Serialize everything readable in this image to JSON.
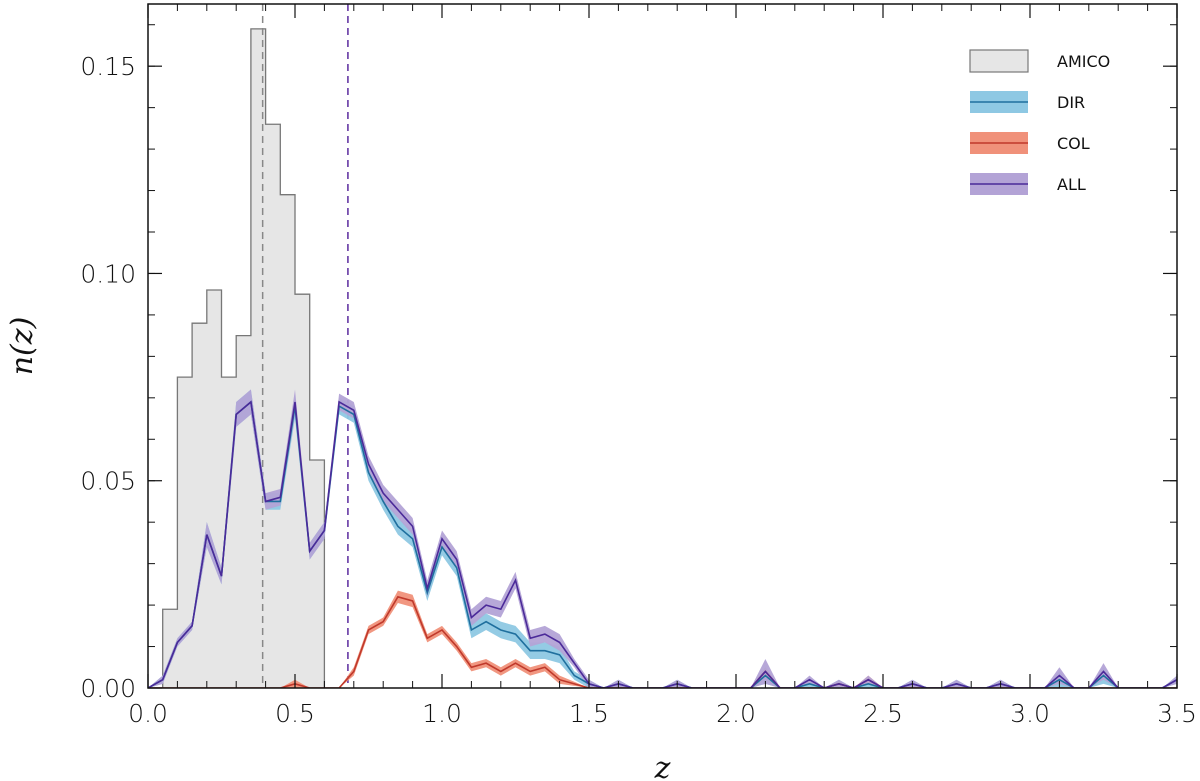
{
  "chart_data": {
    "type": "line",
    "xlabel": "z",
    "ylabel": "n(z)",
    "xlim": [
      0.0,
      3.5
    ],
    "ylim": [
      0.0,
      0.165
    ],
    "x_ticks": [
      0.0,
      0.5,
      1.0,
      1.5,
      2.0,
      2.5,
      3.0,
      3.5
    ],
    "x_tick_labels": [
      "0.0",
      "0.5",
      "1.0",
      "1.5",
      "2.0",
      "2.5",
      "3.0",
      "3.5"
    ],
    "y_ticks": [
      0.0,
      0.05,
      0.1,
      0.15
    ],
    "y_tick_labels": [
      "0.00",
      "0.05",
      "0.10",
      "0.15"
    ],
    "grid": false,
    "legend_position": "top-right",
    "vlines": [
      {
        "x": 0.39,
        "color": "#888888",
        "style": "dashed"
      },
      {
        "x": 0.68,
        "color": "#5b2a9e",
        "style": "dashed"
      }
    ],
    "histogram": {
      "name": "AMICO",
      "fill": "#e6e6e6",
      "edge": "#777777",
      "bin_edges": [
        0.05,
        0.1,
        0.15,
        0.2,
        0.25,
        0.3,
        0.35,
        0.4,
        0.45,
        0.5,
        0.55,
        0.6,
        0.65
      ],
      "values": [
        0.019,
        0.075,
        0.088,
        0.096,
        0.075,
        0.085,
        0.159,
        0.136,
        0.119,
        0.095,
        0.055,
        0.0
      ]
    },
    "series": [
      {
        "name": "DIR",
        "color": "#1f6f9e",
        "band": "#8ec8e3",
        "x": [
          0.0,
          0.05,
          0.1,
          0.15,
          0.2,
          0.25,
          0.3,
          0.35,
          0.4,
          0.45,
          0.5,
          0.55,
          0.6,
          0.65,
          0.7,
          0.75,
          0.8,
          0.85,
          0.9,
          0.95,
          1.0,
          1.05,
          1.1,
          1.15,
          1.2,
          1.25,
          1.3,
          1.35,
          1.4,
          1.45,
          1.5,
          1.55,
          1.6,
          1.65,
          1.7,
          1.75,
          1.8,
          1.85,
          1.9,
          1.95,
          2.0,
          2.05,
          2.1,
          2.15,
          2.2,
          2.25,
          2.3,
          2.35,
          2.4,
          2.45,
          2.5,
          2.55,
          2.6,
          2.65,
          2.7,
          2.75,
          2.8,
          2.85,
          2.9,
          2.95,
          3.0,
          3.05,
          3.1,
          3.15,
          3.2,
          3.25,
          3.3,
          3.35,
          3.4,
          3.45,
          3.5
        ],
        "y": [
          0.0,
          0.002,
          0.011,
          0.015,
          0.037,
          0.027,
          0.066,
          0.069,
          0.045,
          0.045,
          0.068,
          0.033,
          0.038,
          0.068,
          0.066,
          0.052,
          0.045,
          0.039,
          0.036,
          0.023,
          0.034,
          0.029,
          0.014,
          0.016,
          0.014,
          0.013,
          0.009,
          0.009,
          0.008,
          0.003,
          0.001,
          0.0,
          0.001,
          0.0,
          0.0,
          0.0,
          0.001,
          0.0,
          0.0,
          0.0,
          0.0,
          0.0,
          0.003,
          0.0,
          0.0,
          0.001,
          0.0,
          0.001,
          0.0,
          0.001,
          0.0,
          0.0,
          0.001,
          0.0,
          0.0,
          0.001,
          0.0,
          0.0,
          0.001,
          0.0,
          0.0,
          0.0,
          0.002,
          0.0,
          0.0,
          0.003,
          0.0,
          0.0,
          0.0,
          0.0,
          0.002
        ],
        "err": [
          0.0,
          0.001,
          0.001,
          0.001,
          0.003,
          0.002,
          0.003,
          0.003,
          0.002,
          0.002,
          0.003,
          0.002,
          0.002,
          0.002,
          0.002,
          0.002,
          0.002,
          0.002,
          0.002,
          0.002,
          0.002,
          0.002,
          0.002,
          0.002,
          0.002,
          0.002,
          0.002,
          0.002,
          0.002,
          0.001,
          0.001,
          0.0,
          0.001,
          0.0,
          0.0,
          0.0,
          0.001,
          0.0,
          0.0,
          0.0,
          0.0,
          0.0,
          0.002,
          0.0,
          0.0,
          0.001,
          0.0,
          0.001,
          0.0,
          0.001,
          0.0,
          0.0,
          0.001,
          0.0,
          0.0,
          0.001,
          0.0,
          0.0,
          0.001,
          0.0,
          0.0,
          0.0,
          0.002,
          0.0,
          0.0,
          0.002,
          0.0,
          0.0,
          0.0,
          0.0,
          0.001
        ]
      },
      {
        "name": "COL",
        "color": "#c0392b",
        "band": "#f0917a",
        "x": [
          0.0,
          0.05,
          0.1,
          0.15,
          0.2,
          0.25,
          0.3,
          0.35,
          0.4,
          0.45,
          0.5,
          0.55,
          0.6,
          0.65,
          0.7,
          0.75,
          0.8,
          0.85,
          0.9,
          0.95,
          1.0,
          1.05,
          1.1,
          1.15,
          1.2,
          1.25,
          1.3,
          1.35,
          1.4,
          1.45,
          1.5,
          1.55,
          1.6,
          1.65,
          1.7,
          1.75,
          1.8,
          1.85,
          1.9,
          1.95,
          2.0,
          2.05,
          2.1,
          2.15,
          2.2,
          2.25,
          2.3,
          2.35,
          2.4,
          2.45,
          2.5,
          2.55,
          2.6,
          2.65,
          2.7,
          2.75,
          2.8,
          2.85,
          2.9,
          2.95,
          3.0,
          3.05,
          3.1,
          3.15,
          3.2,
          3.25,
          3.3,
          3.35,
          3.4,
          3.45,
          3.5
        ],
        "y": [
          0.0,
          0.0,
          0.0,
          0.0,
          0.0,
          0.0,
          0.0,
          0.0,
          0.0,
          0.0,
          0.001,
          0.0,
          0.0,
          0.0,
          0.004,
          0.014,
          0.016,
          0.022,
          0.021,
          0.012,
          0.014,
          0.01,
          0.005,
          0.006,
          0.004,
          0.006,
          0.004,
          0.005,
          0.002,
          0.001,
          0.0,
          0.0,
          0.0,
          0.0,
          0.0,
          0.0,
          0.0,
          0.0,
          0.0,
          0.0,
          0.0,
          0.0,
          0.004,
          0.0,
          0.0,
          0.0,
          0.0,
          0.001,
          0.0,
          0.002,
          0.0,
          0.0,
          0.0,
          0.0,
          0.0,
          0.0,
          0.0,
          0.0,
          0.0,
          0.0,
          0.0,
          0.0,
          0.0,
          0.0,
          0.0,
          0.0,
          0.0,
          0.0,
          0.0,
          0.0,
          0.0
        ],
        "err": [
          0.0,
          0.0,
          0.0,
          0.0,
          0.0,
          0.0,
          0.0,
          0.0,
          0.0,
          0.0,
          0.001,
          0.0,
          0.0,
          0.0,
          0.001,
          0.001,
          0.001,
          0.0015,
          0.0015,
          0.001,
          0.001,
          0.001,
          0.001,
          0.001,
          0.001,
          0.001,
          0.001,
          0.001,
          0.001,
          0.0005,
          0.0,
          0.0,
          0.0,
          0.0,
          0.0,
          0.0,
          0.0,
          0.0,
          0.0,
          0.0,
          0.0,
          0.0,
          0.001,
          0.0,
          0.0,
          0.0,
          0.0,
          0.0005,
          0.0,
          0.001,
          0.0,
          0.0,
          0.0,
          0.0,
          0.0,
          0.0,
          0.0,
          0.0,
          0.0,
          0.0,
          0.0,
          0.0,
          0.0,
          0.0,
          0.0,
          0.0,
          0.0,
          0.0,
          0.0,
          0.0,
          0.0
        ]
      },
      {
        "name": "ALL",
        "color": "#4b2a99",
        "band": "#b3a3d6",
        "x": [
          0.0,
          0.05,
          0.1,
          0.15,
          0.2,
          0.25,
          0.3,
          0.35,
          0.4,
          0.45,
          0.5,
          0.55,
          0.6,
          0.65,
          0.7,
          0.75,
          0.8,
          0.85,
          0.9,
          0.95,
          1.0,
          1.05,
          1.1,
          1.15,
          1.2,
          1.25,
          1.3,
          1.35,
          1.4,
          1.45,
          1.5,
          1.55,
          1.6,
          1.65,
          1.7,
          1.75,
          1.8,
          1.85,
          1.9,
          1.95,
          2.0,
          2.05,
          2.1,
          2.15,
          2.2,
          2.25,
          2.3,
          2.35,
          2.4,
          2.45,
          2.5,
          2.55,
          2.6,
          2.65,
          2.7,
          2.75,
          2.8,
          2.85,
          2.9,
          2.95,
          3.0,
          3.05,
          3.1,
          3.15,
          3.2,
          3.25,
          3.3,
          3.35,
          3.4,
          3.45,
          3.5
        ],
        "y": [
          0.0,
          0.002,
          0.011,
          0.015,
          0.037,
          0.027,
          0.066,
          0.069,
          0.045,
          0.046,
          0.069,
          0.033,
          0.038,
          0.069,
          0.067,
          0.054,
          0.047,
          0.043,
          0.039,
          0.024,
          0.036,
          0.031,
          0.017,
          0.02,
          0.019,
          0.026,
          0.012,
          0.013,
          0.011,
          0.006,
          0.001,
          0.0,
          0.001,
          0.0,
          0.0,
          0.0,
          0.001,
          0.0,
          0.0,
          0.0,
          0.0,
          0.0,
          0.004,
          0.0,
          0.0,
          0.002,
          0.0,
          0.001,
          0.0,
          0.002,
          0.0,
          0.0,
          0.001,
          0.0,
          0.0,
          0.001,
          0.0,
          0.0,
          0.001,
          0.0,
          0.0,
          0.0,
          0.003,
          0.0,
          0.0,
          0.004,
          0.0,
          0.0,
          0.0,
          0.0,
          0.002
        ],
        "err": [
          0.0,
          0.001,
          0.001,
          0.001,
          0.003,
          0.002,
          0.003,
          0.003,
          0.002,
          0.002,
          0.003,
          0.002,
          0.002,
          0.002,
          0.002,
          0.002,
          0.002,
          0.002,
          0.002,
          0.002,
          0.002,
          0.002,
          0.002,
          0.002,
          0.002,
          0.002,
          0.002,
          0.002,
          0.002,
          0.001,
          0.001,
          0.0,
          0.001,
          0.0,
          0.0,
          0.0,
          0.001,
          0.0,
          0.0,
          0.0,
          0.0,
          0.0,
          0.003,
          0.0,
          0.0,
          0.001,
          0.0,
          0.001,
          0.0,
          0.001,
          0.0,
          0.0,
          0.001,
          0.0,
          0.0,
          0.001,
          0.0,
          0.0,
          0.001,
          0.0,
          0.0,
          0.0,
          0.002,
          0.0,
          0.0,
          0.002,
          0.0,
          0.0,
          0.0,
          0.0,
          0.001
        ]
      }
    ],
    "legend": [
      "AMICO",
      "DIR",
      "COL",
      "ALL"
    ]
  }
}
